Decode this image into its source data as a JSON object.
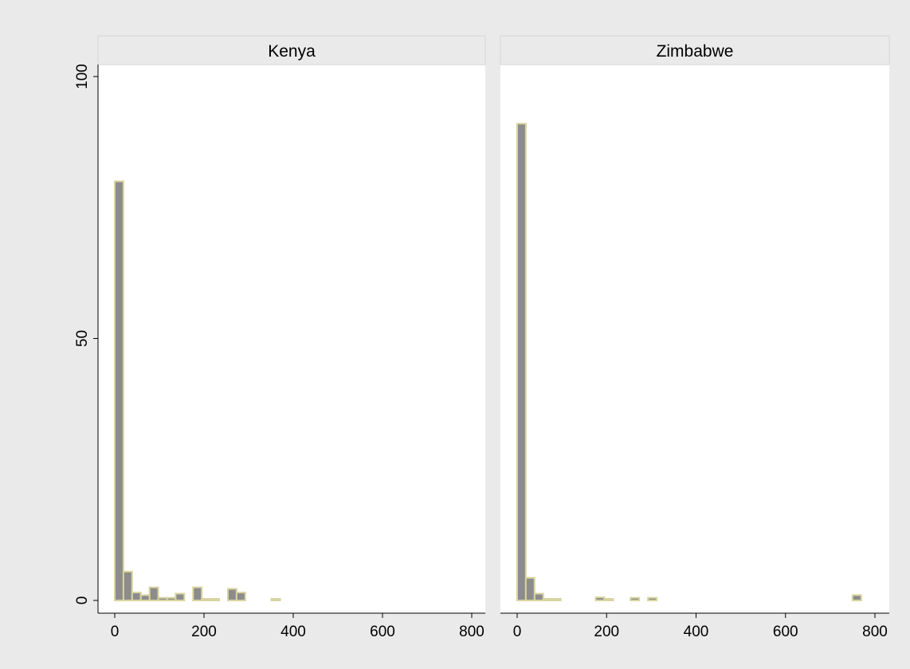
{
  "chart_data": {
    "type": "bar",
    "subtype": "histogram",
    "layout": "faceted",
    "shared_y_axis": true,
    "ylim": [
      0,
      100
    ],
    "yticks": [
      0,
      50,
      100
    ],
    "xlim": [
      -30,
      810
    ],
    "xticks": [
      0,
      200,
      400,
      600,
      800
    ],
    "bin_width": 19.5,
    "colors": {
      "bar_fill": "#8c8c8c",
      "bar_stroke": "#d8d4a0",
      "plot_bg": "#ffffff",
      "strip_bg": "#eaeaea",
      "outer_bg": "#eaeaea"
    },
    "ylabel": "",
    "xlabel": "",
    "grid": false,
    "legend": "none",
    "panels": [
      {
        "title": "Kenya",
        "bins": [
          {
            "x0": 0,
            "value": 80
          },
          {
            "x0": 19.5,
            "value": 5.5
          },
          {
            "x0": 39,
            "value": 1.5
          },
          {
            "x0": 58.5,
            "value": 1
          },
          {
            "x0": 78,
            "value": 2.5
          },
          {
            "x0": 97.5,
            "value": 0.5
          },
          {
            "x0": 117,
            "value": 0.5
          },
          {
            "x0": 136.5,
            "value": 1.3
          },
          {
            "x0": 175.5,
            "value": 2.5
          },
          {
            "x0": 195,
            "value": 0.3
          },
          {
            "x0": 214.5,
            "value": 0.3
          },
          {
            "x0": 253.5,
            "value": 2.2
          },
          {
            "x0": 273,
            "value": 1.5
          },
          {
            "x0": 351,
            "value": 0.3
          }
        ]
      },
      {
        "title": "Zimbabwe",
        "bins": [
          {
            "x0": 0,
            "value": 91
          },
          {
            "x0": 19.5,
            "value": 4.3
          },
          {
            "x0": 39,
            "value": 1.3
          },
          {
            "x0": 58.5,
            "value": 0.3
          },
          {
            "x0": 78,
            "value": 0.3
          },
          {
            "x0": 175.5,
            "value": 0.6
          },
          {
            "x0": 195,
            "value": 0.3
          },
          {
            "x0": 253.5,
            "value": 0.5
          },
          {
            "x0": 292.5,
            "value": 0.5
          },
          {
            "x0": 750,
            "value": 1
          }
        ]
      }
    ]
  }
}
